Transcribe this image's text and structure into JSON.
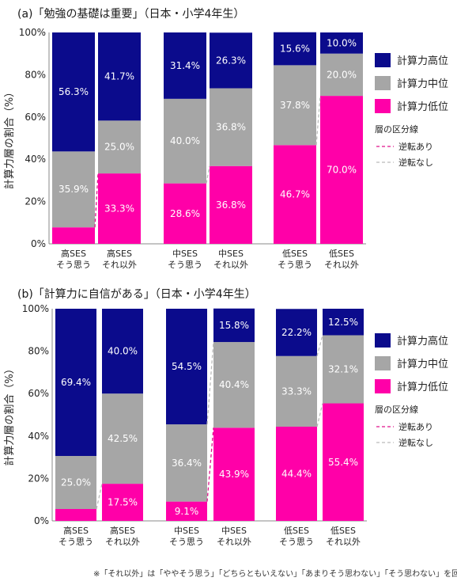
{
  "colors": {
    "high": "#0B0B8C",
    "mid": "#A6A6A6",
    "low": "#FF00A8",
    "reversal": "#E0138C",
    "no_reversal": "#BBBBBB"
  },
  "legend": {
    "items": [
      "計算力高位",
      "計算力中位",
      "計算力低位"
    ],
    "line_title": "層の区分線",
    "line_items": [
      "逆転あり",
      "逆転なし"
    ]
  },
  "chart_data": [
    {
      "type": "bar",
      "title": "(a)「勉強の基礎は重要」（日本・小学4年生）",
      "ylabel": "計算力層の割合（%）",
      "ylim": [
        0,
        100
      ],
      "yticks": [
        "0%",
        "20%",
        "40%",
        "60%",
        "80%",
        "100%"
      ],
      "categories": [
        [
          "高SES",
          "そう思う"
        ],
        [
          "高SES",
          "それ以外"
        ],
        [
          "中SES",
          "そう思う"
        ],
        [
          "中SES",
          "それ以外"
        ],
        [
          "低SES",
          "そう思う"
        ],
        [
          "低SES",
          "それ以外"
        ]
      ],
      "series": [
        {
          "name": "計算力低位",
          "values": [
            7.8,
            33.3,
            28.6,
            36.8,
            46.7,
            70.0
          ],
          "labels": [
            "",
            "33.3%",
            "28.6%",
            "36.8%",
            "46.7%",
            "70.0%"
          ]
        },
        {
          "name": "計算力中位",
          "values": [
            35.9,
            25.0,
            40.0,
            36.8,
            37.8,
            20.0
          ],
          "labels": [
            "35.9%",
            "25.0%",
            "40.0%",
            "36.8%",
            "37.8%",
            "20.0%"
          ]
        },
        {
          "name": "計算力高位",
          "values": [
            56.3,
            41.7,
            31.4,
            26.3,
            15.6,
            10.0
          ],
          "labels": [
            "56.3%",
            "41.7%",
            "31.4%",
            "26.3%",
            "15.6%",
            "10.0%"
          ]
        }
      ],
      "connectors": [
        {
          "pair": 0,
          "boundary": "low_mid",
          "reversal": true
        },
        {
          "pair": 1,
          "boundary": "low_mid",
          "reversal": false
        },
        {
          "pair": 2,
          "boundary": "low_mid",
          "reversal": false
        }
      ]
    },
    {
      "type": "bar",
      "title": "(b)「計算力に自信がある」（日本・小学4年生）",
      "ylabel": "計算力層の割合（%）",
      "ylim": [
        0,
        100
      ],
      "yticks": [
        "0%",
        "20%",
        "40%",
        "60%",
        "80%",
        "100%"
      ],
      "categories": [
        [
          "高SES",
          "そう思う"
        ],
        [
          "高SES",
          "それ以外"
        ],
        [
          "中SES",
          "そう思う"
        ],
        [
          "中SES",
          "それ以外"
        ],
        [
          "低SES",
          "そう思う"
        ],
        [
          "低SES",
          "それ以外"
        ]
      ],
      "series": [
        {
          "name": "計算力低位",
          "values": [
            5.6,
            17.5,
            9.1,
            43.9,
            44.4,
            55.4
          ],
          "labels": [
            "",
            "17.5%",
            "9.1%",
            "43.9%",
            "44.4%",
            "55.4%"
          ]
        },
        {
          "name": "計算力中位",
          "values": [
            25.0,
            42.5,
            36.4,
            40.4,
            33.3,
            32.1
          ],
          "labels": [
            "25.0%",
            "42.5%",
            "36.4%",
            "40.4%",
            "33.3%",
            "32.1%"
          ]
        },
        {
          "name": "計算力高位",
          "values": [
            69.4,
            40.0,
            54.5,
            15.8,
            22.2,
            12.5
          ],
          "labels": [
            "69.4%",
            "40.0%",
            "54.5%",
            "15.8%",
            "22.2%",
            "12.5%"
          ]
        }
      ],
      "connectors": [
        {
          "pair": 0,
          "boundary": "low_mid",
          "reversal": false
        },
        {
          "pair": 1,
          "boundary": "low_mid",
          "reversal": true
        },
        {
          "pair": 1,
          "boundary": "mid_high",
          "reversal": false
        },
        {
          "pair": 2,
          "boundary": "low_mid",
          "reversal": false
        },
        {
          "pair": 2,
          "boundary": "mid_high",
          "reversal": false
        }
      ]
    }
  ],
  "footnote": "※「それ以外」は「ややそう思う」「どちらともいえない」「あまりそう思わない」「そう思わない」を回答した合計。"
}
